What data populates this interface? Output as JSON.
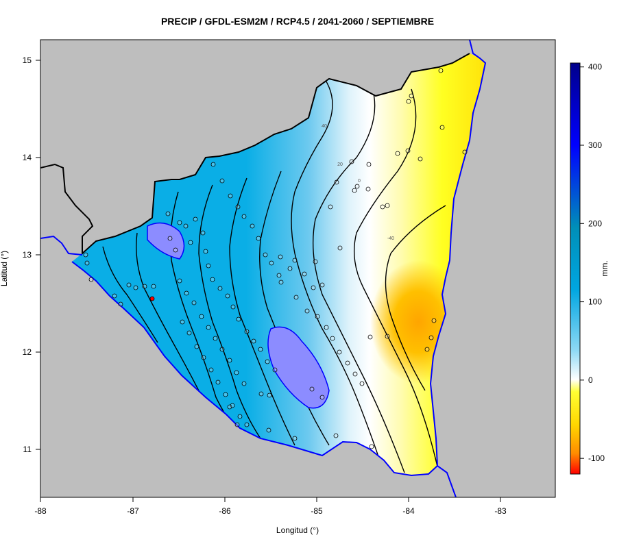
{
  "map": {
    "title": "PRECIP / GFDL-ESM2M / RCP4.5 / 2041-2060 / SEPTIEMBRE",
    "xlabel": "Longitud (°)",
    "ylabel": "Latitud (°)",
    "x_ticks": [
      "-88",
      "-87",
      "-86",
      "-85",
      "-84",
      "-83"
    ],
    "y_ticks": [
      "11",
      "12",
      "13",
      "14",
      "15"
    ],
    "colorbar": {
      "label": "mm.",
      "ticks": [
        "400",
        "300",
        "200",
        "100",
        "0",
        "-100"
      ],
      "range": [
        -120,
        405
      ]
    },
    "contour_labels": [
      "40",
      "20",
      "0",
      "-40"
    ],
    "colors": {
      "land_outside": "#bebebe",
      "border": "#000000",
      "coast_water": "#0000ff",
      "lake": "#8c8cff",
      "station": "#000000",
      "station_highlight": "#ff0000"
    }
  }
}
